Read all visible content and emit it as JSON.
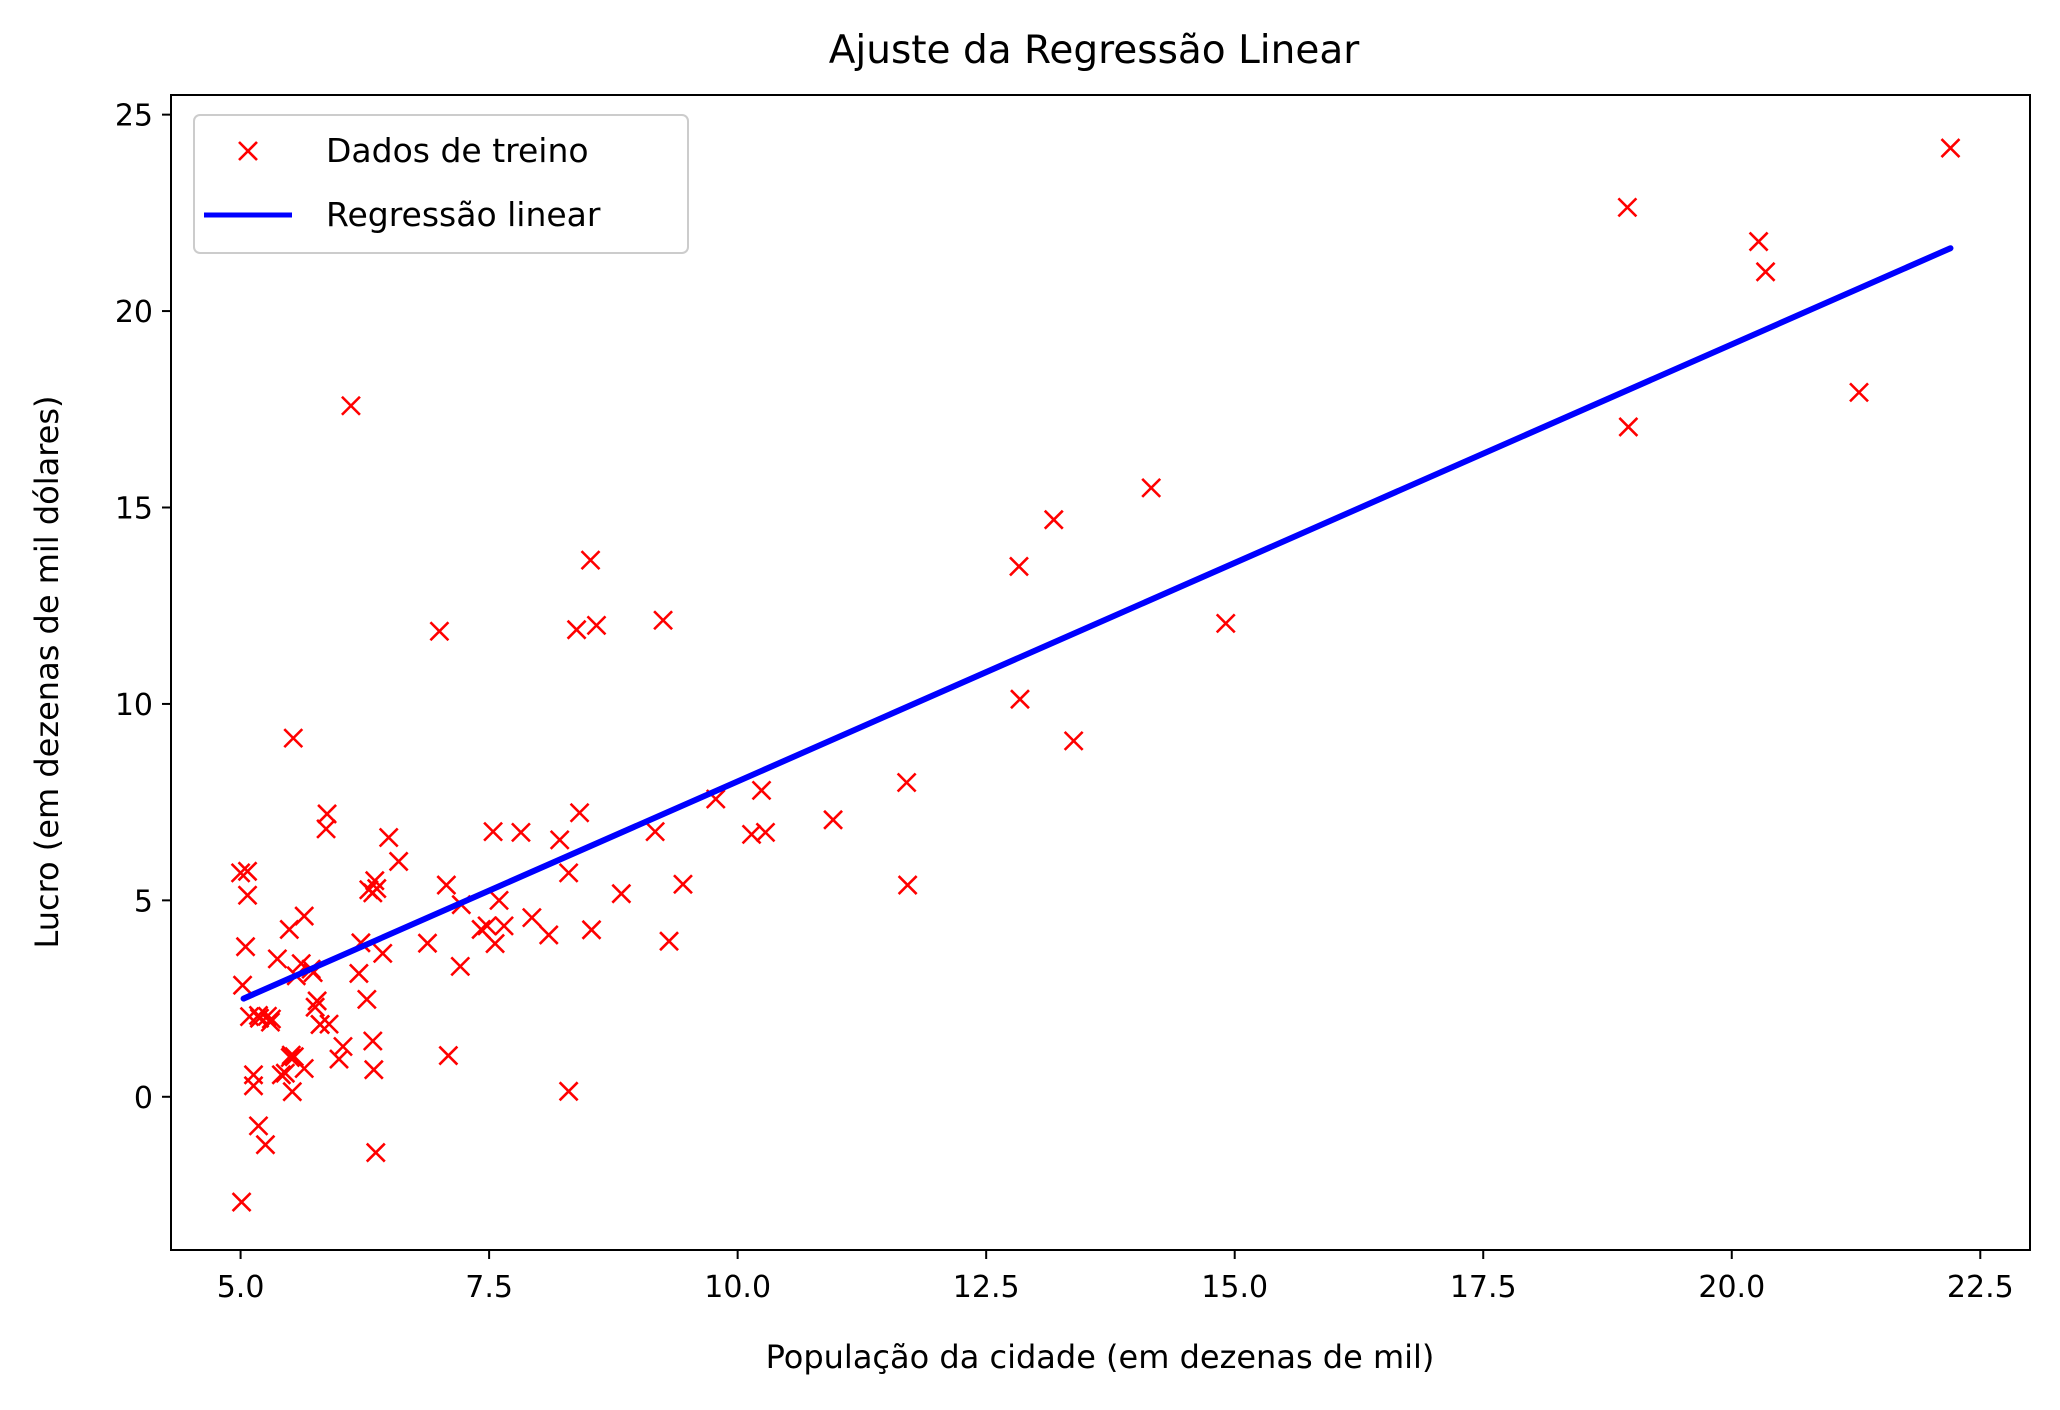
{
  "chart_data": {
    "type": "scatter",
    "title": "Ajuste da Regressão Linear",
    "xlabel": "População da cidade (em dezenas de mil)",
    "ylabel": "Lucro (em dezenas de mil dólares)",
    "xlim": [
      4.3,
      23.0
    ],
    "ylim": [
      -3.9,
      25.5
    ],
    "xticks": [
      "5.0",
      "7.5",
      "10.0",
      "12.5",
      "15.0",
      "17.5",
      "20.0",
      "22.5"
    ],
    "yticks": [
      "0",
      "5",
      "10",
      "15",
      "20",
      "25"
    ],
    "grid": false,
    "legend_position": "top-left",
    "series": [
      {
        "name": "Dados de treino",
        "kind": "scatter",
        "marker": "x",
        "color": "#ff0000",
        "points": [
          [
            6.11,
            17.59
          ],
          [
            5.53,
            9.13
          ],
          [
            8.52,
            13.66
          ],
          [
            7.0,
            11.85
          ],
          [
            5.86,
            6.82
          ],
          [
            8.38,
            11.89
          ],
          [
            7.48,
            4.35
          ],
          [
            8.58,
            12.0
          ],
          [
            6.49,
            6.6
          ],
          [
            5.05,
            3.82
          ],
          [
            5.71,
            3.25
          ],
          [
            14.16,
            15.5
          ],
          [
            5.73,
            3.16
          ],
          [
            8.41,
            7.23
          ],
          [
            5.64,
            0.72
          ],
          [
            5.37,
            3.51
          ],
          [
            6.37,
            5.3
          ],
          [
            5.13,
            0.56
          ],
          [
            6.43,
            3.65
          ],
          [
            7.07,
            5.39
          ],
          [
            6.19,
            3.14
          ],
          [
            20.27,
            21.77
          ],
          [
            5.49,
            4.26
          ],
          [
            6.33,
            5.19
          ],
          [
            5.56,
            3.08
          ],
          [
            18.95,
            22.64
          ],
          [
            12.83,
            13.5
          ],
          [
            10.96,
            7.05
          ],
          [
            13.18,
            14.69
          ],
          [
            22.2,
            24.15
          ],
          [
            5.25,
            -1.22
          ],
          [
            6.59,
            5.99
          ],
          [
            9.25,
            12.13
          ],
          [
            5.89,
            1.85
          ],
          [
            8.21,
            6.54
          ],
          [
            7.93,
            4.56
          ],
          [
            8.1,
            4.12
          ],
          [
            5.61,
            3.39
          ],
          [
            12.84,
            10.12
          ],
          [
            6.35,
            5.5
          ],
          [
            5.41,
            0.56
          ],
          [
            6.88,
            3.91
          ],
          [
            11.71,
            5.39
          ],
          [
            5.77,
            2.44
          ],
          [
            7.82,
            6.73
          ],
          [
            7.09,
            1.05
          ],
          [
            5.07,
            5.13
          ],
          [
            5.8,
            1.84
          ],
          [
            11.7,
            8.0
          ],
          [
            5.54,
            1.02
          ],
          [
            7.54,
            6.75
          ],
          [
            5.31,
            1.98
          ],
          [
            7.42,
            4.26
          ],
          [
            7.6,
            5.0
          ],
          [
            6.03,
            1.28
          ],
          [
            6.33,
            1.42
          ],
          [
            6.36,
            -1.42
          ],
          [
            6.27,
            2.48
          ],
          [
            5.64,
            4.6
          ],
          [
            9.31,
            3.96
          ],
          [
            9.45,
            5.41
          ],
          [
            8.83,
            5.17
          ],
          [
            5.18,
            -0.74
          ],
          [
            21.28,
            17.93
          ],
          [
            14.91,
            12.05
          ],
          [
            18.96,
            17.05
          ],
          [
            7.22,
            4.89
          ],
          [
            5.07,
            5.74
          ],
          [
            5.8,
            1.84
          ],
          [
            8.3,
            0.14
          ],
          [
            5.19,
            2.0
          ],
          [
            5.51,
            1.06
          ],
          [
            7.56,
            3.9
          ],
          [
            5.27,
            2.05
          ],
          [
            5.13,
            0.28
          ],
          [
            10.28,
            6.73
          ],
          [
            6.34,
            0.69
          ],
          [
            5.18,
            2.07
          ],
          [
            7.21,
            3.32
          ],
          [
            5.09,
            2.04
          ],
          [
            6.29,
            5.27
          ],
          [
            5.02,
            2.84
          ],
          [
            5.75,
            2.28
          ],
          [
            6.21,
            3.92
          ],
          [
            5.45,
            0.6
          ],
          [
            5.99,
            0.96
          ],
          [
            8.3,
            5.7
          ],
          [
            9.17,
            6.75
          ],
          [
            13.38,
            9.06
          ],
          [
            20.34,
            21.0
          ],
          [
            9.78,
            7.58
          ],
          [
            5.87,
            7.2
          ],
          [
            5.52,
            0.13
          ],
          [
            7.65,
            4.35
          ],
          [
            10.24,
            7.8
          ],
          [
            5.5,
            1.0
          ],
          [
            8.53,
            4.25
          ],
          [
            10.14,
            6.68
          ],
          [
            5.3,
            1.9
          ],
          [
            5.01,
            -2.68
          ],
          [
            5.0,
            5.7
          ]
        ]
      },
      {
        "name": "Regressão linear",
        "kind": "line",
        "color": "#0000ff",
        "points": [
          [
            5.03,
            2.5
          ],
          [
            22.2,
            21.6
          ]
        ]
      }
    ]
  }
}
